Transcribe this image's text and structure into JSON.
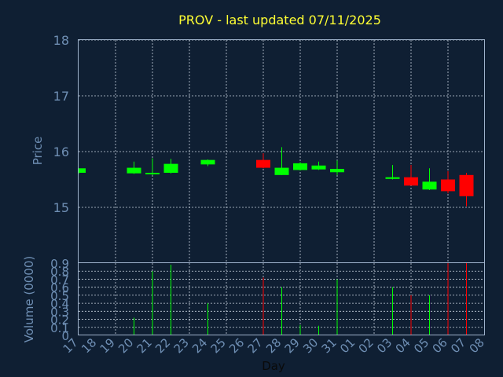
{
  "chart_data": [
    {
      "type": "candlestick",
      "title": "PROV - last updated 07/11/2025",
      "ylabel": "Price",
      "ylim": [
        14.0,
        18.0
      ],
      "yticks": [
        "15",
        "16",
        "17",
        "18"
      ],
      "x": [
        "17",
        "18",
        "19",
        "20",
        "21",
        "22",
        "23",
        "24",
        "25",
        "26",
        "27",
        "28",
        "29",
        "30",
        "31",
        "01",
        "02",
        "03",
        "04",
        "05",
        "06",
        "07",
        "08"
      ],
      "grid": true,
      "colors": {
        "up": "#00ff00",
        "down": "#ff0000"
      },
      "candles": [
        {
          "day": "17",
          "open": 15.62,
          "high": 15.7,
          "low": 15.6,
          "close": 15.7
        },
        {
          "day": "20",
          "open": 15.61,
          "high": 15.82,
          "low": 15.6,
          "close": 15.71
        },
        {
          "day": "21",
          "open": 15.6,
          "high": 15.88,
          "low": 15.58,
          "close": 15.62
        },
        {
          "day": "22",
          "open": 15.62,
          "high": 15.87,
          "low": 15.61,
          "close": 15.78
        },
        {
          "day": "24",
          "open": 15.77,
          "high": 15.86,
          "low": 15.74,
          "close": 15.85
        },
        {
          "day": "27",
          "open": 15.85,
          "high": 15.97,
          "low": 15.7,
          "close": 15.71
        },
        {
          "day": "28",
          "open": 15.58,
          "high": 16.08,
          "low": 15.58,
          "close": 15.71
        },
        {
          "day": "29",
          "open": 15.67,
          "high": 15.81,
          "low": 15.66,
          "close": 15.79
        },
        {
          "day": "30",
          "open": 15.68,
          "high": 15.82,
          "low": 15.67,
          "close": 15.75
        },
        {
          "day": "31",
          "open": 15.63,
          "high": 15.84,
          "low": 15.58,
          "close": 15.69
        },
        {
          "day": "03",
          "open": 15.51,
          "high": 15.76,
          "low": 15.5,
          "close": 15.54
        },
        {
          "day": "04",
          "open": 15.54,
          "high": 15.76,
          "low": 15.39,
          "close": 15.39
        },
        {
          "day": "05",
          "open": 15.32,
          "high": 15.7,
          "low": 15.31,
          "close": 15.46
        },
        {
          "day": "06",
          "open": 15.5,
          "high": 15.65,
          "low": 15.25,
          "close": 15.29
        },
        {
          "day": "07",
          "open": 15.58,
          "high": 15.62,
          "low": 15.02,
          "close": 15.2
        }
      ]
    },
    {
      "type": "bar",
      "ylabel": "Volume (0000)",
      "xlabel": "Day",
      "ylim": [
        0,
        0.9
      ],
      "yticks": [
        "0",
        "0.1",
        "0.2",
        "0.3",
        "0.4",
        "0.5",
        "0.6",
        "0.7",
        "0.8",
        "0.9"
      ],
      "x": [
        "17",
        "18",
        "19",
        "20",
        "21",
        "22",
        "23",
        "24",
        "25",
        "26",
        "27",
        "28",
        "29",
        "30",
        "31",
        "01",
        "02",
        "03",
        "04",
        "05",
        "06",
        "07",
        "08"
      ],
      "grid": true,
      "bars": [
        {
          "day": "20",
          "value": 0.22,
          "color": "#00ff00"
        },
        {
          "day": "21",
          "value": 0.8,
          "color": "#00ff00"
        },
        {
          "day": "22",
          "value": 0.88,
          "color": "#00ff00"
        },
        {
          "day": "24",
          "value": 0.4,
          "color": "#00ff00"
        },
        {
          "day": "27",
          "value": 0.72,
          "color": "#ff0000"
        },
        {
          "day": "28",
          "value": 0.6,
          "color": "#00ff00"
        },
        {
          "day": "29",
          "value": 0.13,
          "color": "#00ff00"
        },
        {
          "day": "30",
          "value": 0.12,
          "color": "#00ff00"
        },
        {
          "day": "31",
          "value": 0.7,
          "color": "#00ff00"
        },
        {
          "day": "03",
          "value": 0.6,
          "color": "#00ff00"
        },
        {
          "day": "04",
          "value": 0.5,
          "color": "#ff0000"
        },
        {
          "day": "05",
          "value": 0.5,
          "color": "#00ff00"
        },
        {
          "day": "06",
          "value": 0.9,
          "color": "#ff0000"
        },
        {
          "day": "07",
          "value": 0.9,
          "color": "#ff0000"
        }
      ]
    }
  ]
}
